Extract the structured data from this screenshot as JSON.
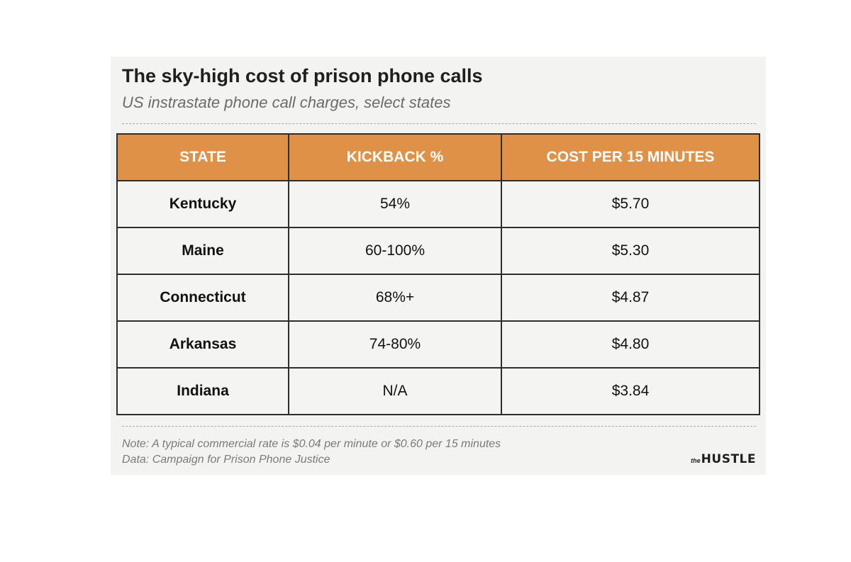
{
  "chart_data": {
    "type": "table",
    "title": "The sky-high cost of prison phone calls",
    "subtitle": "US instrastate phone call charges, select states",
    "columns": [
      "STATE",
      "KICKBACK %",
      "COST PER 15 MINUTES"
    ],
    "rows": [
      [
        "Kentucky",
        "54%",
        "$5.70"
      ],
      [
        "Maine",
        "60-100%",
        "$5.30"
      ],
      [
        "Connecticut",
        "68%+",
        "$4.87"
      ],
      [
        "Arkansas",
        "74-80%",
        "$4.80"
      ],
      [
        "Indiana",
        "N/A",
        "$3.84"
      ]
    ],
    "note": "Note: A typical commercial rate is $0.04 per minute or $0.60 per 15 minutes",
    "source": "Data: Campaign for Prison Phone Justice"
  },
  "brand": {
    "prefix": "the",
    "name": "HUSTLE"
  },
  "colors": {
    "header_bg": "#e09148",
    "card_bg": "#f3f3f1"
  }
}
